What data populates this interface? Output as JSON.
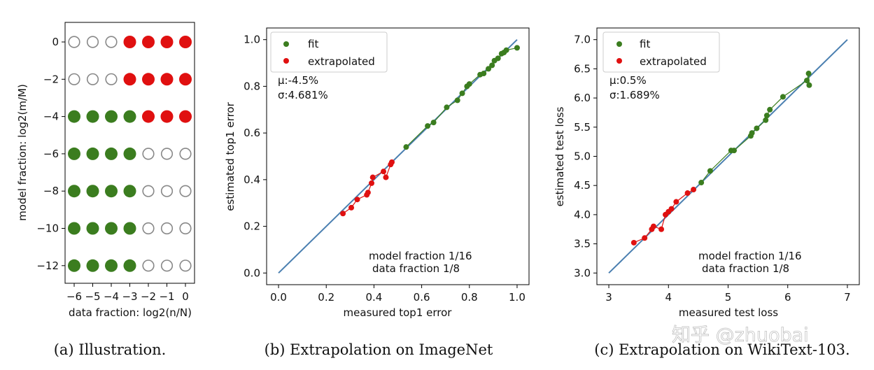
{
  "watermark": "知乎 @zhuobai",
  "chart_data": [
    {
      "type": "grid-illustration",
      "caption": "(a) Illustration.",
      "xlabel": "data fraction: log2(n/N)",
      "ylabel": "model fraction: log2(m/M)",
      "x_ticks": [
        "−6",
        "−5",
        "−4",
        "−3",
        "−2",
        "−1",
        "0"
      ],
      "y_ticks": [
        "0",
        "−2",
        "−4",
        "−6",
        "−8",
        "−10",
        "−12"
      ],
      "x_values": [
        -6,
        -5,
        -4,
        -3,
        -2,
        -1,
        0
      ],
      "y_values": [
        0,
        -2,
        -4,
        -6,
        -8,
        -10,
        -12
      ],
      "legend_colors": {
        "fit": "#3b7d1f",
        "extrapolated": "#e01010",
        "empty": "#888888"
      },
      "cells": [
        [
          "empty",
          "empty",
          "empty",
          "extrapolated",
          "extrapolated",
          "extrapolated",
          "extrapolated"
        ],
        [
          "empty",
          "empty",
          "empty",
          "extrapolated",
          "extrapolated",
          "extrapolated",
          "extrapolated"
        ],
        [
          "fit",
          "fit",
          "fit",
          "fit",
          "extrapolated",
          "extrapolated",
          "extrapolated"
        ],
        [
          "fit",
          "fit",
          "fit",
          "fit",
          "empty",
          "empty",
          "empty"
        ],
        [
          "fit",
          "fit",
          "fit",
          "fit",
          "empty",
          "empty",
          "empty"
        ],
        [
          "fit",
          "fit",
          "fit",
          "fit",
          "empty",
          "empty",
          "empty"
        ],
        [
          "fit",
          "fit",
          "fit",
          "fit",
          "empty",
          "empty",
          "empty"
        ]
      ]
    },
    {
      "type": "scatter",
      "caption": "(b) Extrapolation on ImageNet",
      "xlabel": "measured top1 error",
      "ylabel": "estimated top1 error",
      "xlim": [
        -0.05,
        1.05
      ],
      "ylim": [
        -0.05,
        1.05
      ],
      "x_ticks": [
        "0.0",
        "0.2",
        "0.4",
        "0.6",
        "0.8",
        "1.0"
      ],
      "y_ticks": [
        "0.0",
        "0.2",
        "0.4",
        "0.6",
        "0.8",
        "1.0"
      ],
      "tick_values": [
        0,
        0.2,
        0.4,
        0.6,
        0.8,
        1.0
      ],
      "legend": [
        {
          "name": "fit",
          "color": "#3b7d1f"
        },
        {
          "name": "extrapolated",
          "color": "#e01010"
        }
      ],
      "stats": [
        "μ:-4.5%",
        "σ:4.681%"
      ],
      "note": [
        "model fraction 1/16",
        "data fraction 1/8"
      ],
      "diagonal": [
        0,
        1
      ],
      "line_color": "#4a7fb0",
      "series": [
        {
          "name": "fit",
          "color": "#3b7d1f",
          "points": [
            [
              0.535,
              0.54
            ],
            [
              0.625,
              0.63
            ],
            [
              0.65,
              0.645
            ],
            [
              0.705,
              0.71
            ],
            [
              0.75,
              0.74
            ],
            [
              0.77,
              0.77
            ],
            [
              0.79,
              0.8
            ],
            [
              0.8,
              0.81
            ],
            [
              0.845,
              0.85
            ],
            [
              0.86,
              0.855
            ],
            [
              0.88,
              0.875
            ],
            [
              0.895,
              0.89
            ],
            [
              0.905,
              0.91
            ],
            [
              0.92,
              0.92
            ],
            [
              0.935,
              0.94
            ],
            [
              0.945,
              0.945
            ],
            [
              0.955,
              0.955
            ],
            [
              1.0,
              0.965
            ]
          ]
        },
        {
          "name": "extrapolated",
          "color": "#e01010",
          "points": [
            [
              0.27,
              0.255
            ],
            [
              0.305,
              0.28
            ],
            [
              0.33,
              0.315
            ],
            [
              0.37,
              0.335
            ],
            [
              0.375,
              0.345
            ],
            [
              0.39,
              0.385
            ],
            [
              0.395,
              0.41
            ],
            [
              0.44,
              0.435
            ],
            [
              0.45,
              0.41
            ],
            [
              0.47,
              0.465
            ],
            [
              0.475,
              0.475
            ]
          ]
        }
      ]
    },
    {
      "type": "scatter",
      "caption": "(c) Extrapolation on WikiText-103.",
      "xlabel": "measured test loss",
      "ylabel": "estimated test loss",
      "xlim": [
        2.8,
        7.2
      ],
      "ylim": [
        2.8,
        7.2
      ],
      "x_ticks": [
        "3",
        "4",
        "5",
        "6",
        "7"
      ],
      "x_tick_values": [
        3,
        4,
        5,
        6,
        7
      ],
      "y_ticks": [
        "3.0",
        "3.5",
        "4.0",
        "4.5",
        "5.0",
        "5.5",
        "6.0",
        "6.5",
        "7.0"
      ],
      "y_tick_values": [
        3.0,
        3.5,
        4.0,
        4.5,
        5.0,
        5.5,
        6.0,
        6.5,
        7.0
      ],
      "legend": [
        {
          "name": "fit",
          "color": "#3b7d1f"
        },
        {
          "name": "extrapolated",
          "color": "#e01010"
        }
      ],
      "stats": [
        "μ:0.5%",
        "σ:1.689%"
      ],
      "note": [
        "model fraction 1/16",
        "data fraction 1/8"
      ],
      "diagonal": [
        3,
        7
      ],
      "line_color": "#4a7fb0",
      "series": [
        {
          "name": "fit",
          "color": "#3b7d1f",
          "points": [
            [
              4.55,
              4.55
            ],
            [
              4.7,
              4.75
            ],
            [
              5.05,
              5.1
            ],
            [
              5.1,
              5.1
            ],
            [
              5.38,
              5.35
            ],
            [
              5.4,
              5.4
            ],
            [
              5.48,
              5.48
            ],
            [
              5.63,
              5.62
            ],
            [
              5.65,
              5.7
            ],
            [
              5.7,
              5.8
            ],
            [
              5.92,
              6.02
            ],
            [
              6.32,
              6.3
            ],
            [
              6.35,
              6.42
            ],
            [
              6.36,
              6.22
            ]
          ]
        },
        {
          "name": "extrapolated",
          "color": "#e01010",
          "points": [
            [
              3.42,
              3.52
            ],
            [
              3.6,
              3.6
            ],
            [
              3.72,
              3.75
            ],
            [
              3.75,
              3.8
            ],
            [
              3.88,
              3.75
            ],
            [
              3.95,
              4.0
            ],
            [
              4.0,
              4.05
            ],
            [
              4.05,
              4.1
            ],
            [
              4.13,
              4.22
            ],
            [
              4.32,
              4.37
            ],
            [
              4.42,
              4.43
            ]
          ]
        }
      ]
    }
  ]
}
